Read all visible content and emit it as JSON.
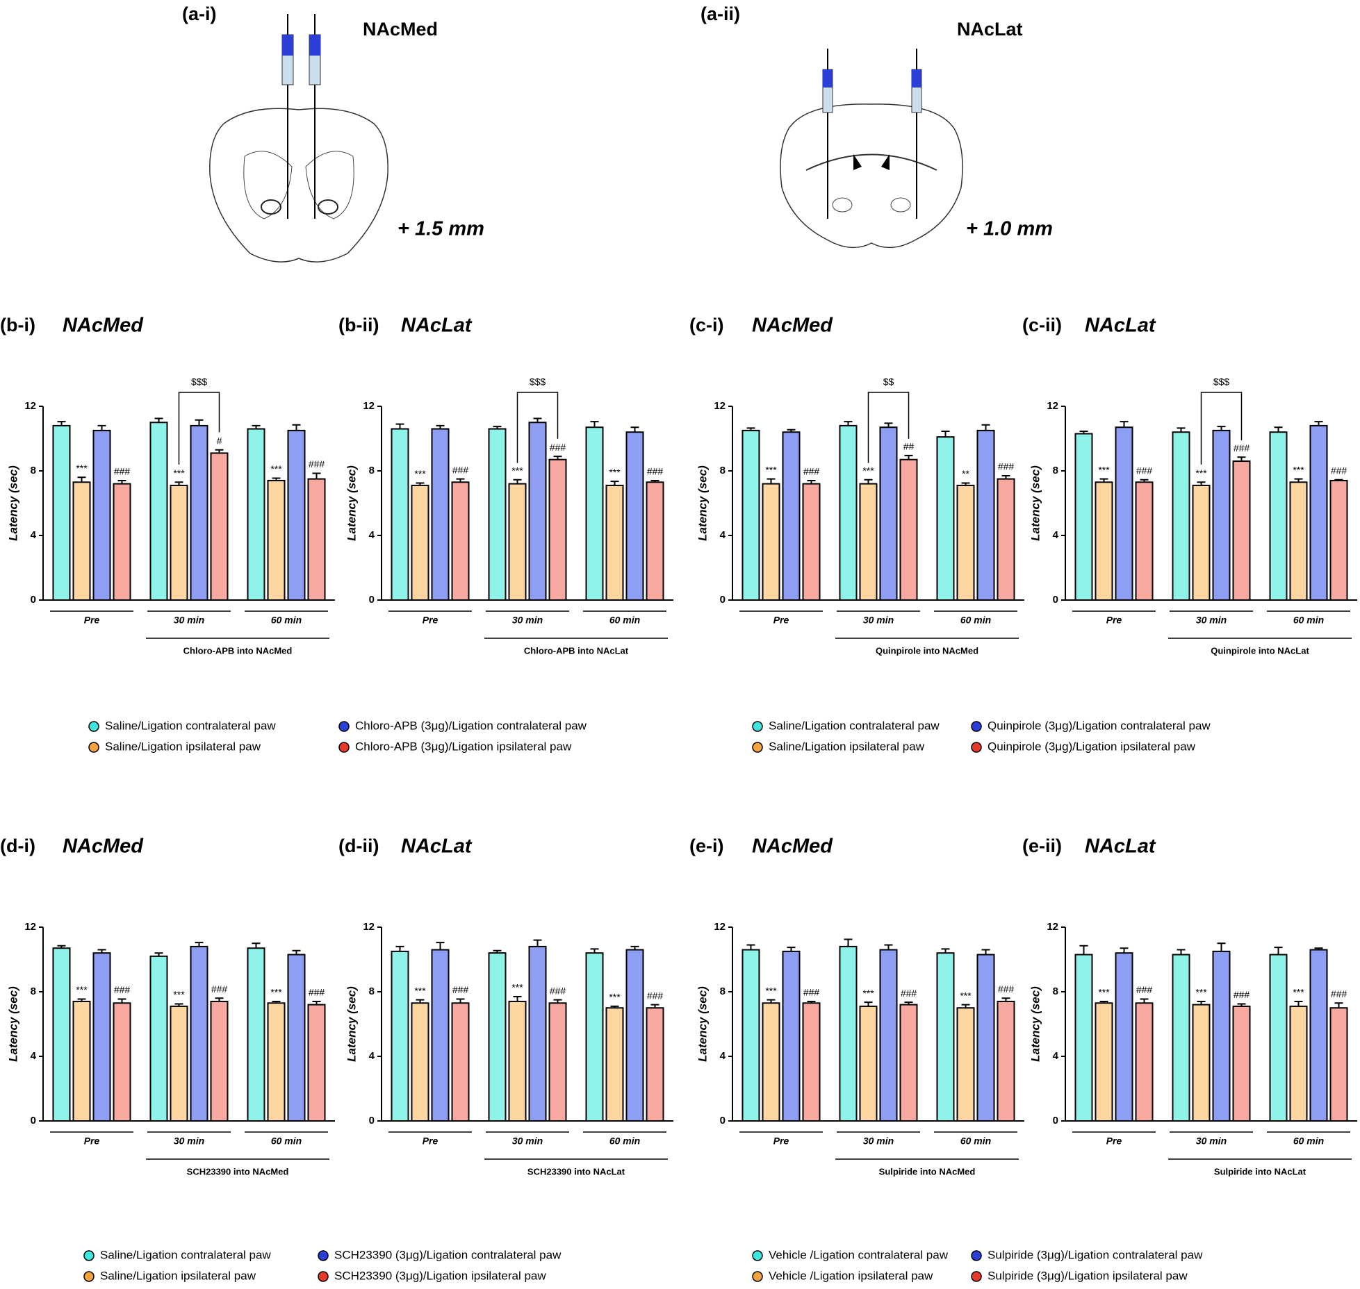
{
  "diagrams": [
    {
      "panel": "(a-i)",
      "title": "NAcMed",
      "coordinate": "+ 1.5 mm"
    },
    {
      "panel": "(a-ii)",
      "title": "NAcLat",
      "coordinate": "+ 1.0 mm"
    }
  ],
  "chart_data": [
    {
      "type": "bar",
      "panel": "(b-i)",
      "title": "NAcMed",
      "y_label": "Latency (sec)",
      "categories": [
        "Pre",
        "30 min",
        "60 min"
      ],
      "caption": "Chloro-APB into NAcMed",
      "ylim": [
        0,
        12
      ],
      "yticks": [
        0,
        4,
        8,
        12
      ],
      "bracket_label": "$$$",
      "series": [
        {
          "color": "#8ff3ea",
          "values": [
            10.8,
            11.0,
            10.6
          ],
          "errors": [
            0.25,
            0.25,
            0.2
          ]
        },
        {
          "color": "#fdd6a2",
          "values": [
            7.3,
            7.1,
            7.4
          ],
          "errors": [
            0.3,
            0.2,
            0.15
          ],
          "annotations": [
            "***",
            "***",
            "***"
          ]
        },
        {
          "color": "#8e9ff3",
          "values": [
            10.5,
            10.8,
            10.5
          ],
          "errors": [
            0.3,
            0.35,
            0.35
          ]
        },
        {
          "color": "#f7a89f",
          "values": [
            7.2,
            9.1,
            7.5
          ],
          "errors": [
            0.2,
            0.2,
            0.35
          ],
          "annotations": [
            "###",
            "#",
            "###"
          ]
        }
      ]
    },
    {
      "type": "bar",
      "panel": "(b-ii)",
      "title": "NAcLat",
      "y_label": "Latency (sec)",
      "categories": [
        "Pre",
        "30 min",
        "60 min"
      ],
      "caption": "Chloro-APB into NAcLat",
      "ylim": [
        0,
        12
      ],
      "yticks": [
        0,
        4,
        8,
        12
      ],
      "bracket_label": "$$$",
      "series": [
        {
          "color": "#8ff3ea",
          "values": [
            10.6,
            10.6,
            10.7
          ],
          "errors": [
            0.3,
            0.15,
            0.35
          ]
        },
        {
          "color": "#fdd6a2",
          "values": [
            7.1,
            7.2,
            7.1
          ],
          "errors": [
            0.15,
            0.25,
            0.25
          ],
          "annotations": [
            "***",
            "***",
            "***"
          ]
        },
        {
          "color": "#8e9ff3",
          "values": [
            10.6,
            11.0,
            10.4
          ],
          "errors": [
            0.2,
            0.25,
            0.3
          ]
        },
        {
          "color": "#f7a89f",
          "values": [
            7.3,
            8.7,
            7.3
          ],
          "errors": [
            0.2,
            0.2,
            0.1
          ],
          "annotations": [
            "###",
            "###",
            "###"
          ]
        }
      ]
    },
    {
      "type": "bar",
      "panel": "(c-i)",
      "title": "NAcMed",
      "y_label": "Latency (sec)",
      "categories": [
        "Pre",
        "30 min",
        "60 min"
      ],
      "caption": "Quinpirole into NAcMed",
      "ylim": [
        0,
        12
      ],
      "yticks": [
        0,
        4,
        8,
        12
      ],
      "bracket_label": "$$",
      "series": [
        {
          "color": "#8ff3ea",
          "values": [
            10.5,
            10.8,
            10.1
          ],
          "errors": [
            0.15,
            0.25,
            0.35
          ]
        },
        {
          "color": "#fdd6a2",
          "values": [
            7.2,
            7.2,
            7.1
          ],
          "errors": [
            0.3,
            0.25,
            0.15
          ],
          "annotations": [
            "***",
            "***",
            "**"
          ]
        },
        {
          "color": "#8e9ff3",
          "values": [
            10.4,
            10.7,
            10.5
          ],
          "errors": [
            0.15,
            0.25,
            0.35
          ]
        },
        {
          "color": "#f7a89f",
          "values": [
            7.2,
            8.7,
            7.5
          ],
          "errors": [
            0.2,
            0.25,
            0.2
          ],
          "annotations": [
            "###",
            "##",
            "###"
          ]
        }
      ]
    },
    {
      "type": "bar",
      "panel": "(c-ii)",
      "title": "NAcLat",
      "y_label": "Latency (sec)",
      "categories": [
        "Pre",
        "30 min",
        "60 min"
      ],
      "caption": "Quinpirole into NAcLat",
      "ylim": [
        0,
        12
      ],
      "yticks": [
        0,
        4,
        8,
        12
      ],
      "bracket_label": "$$$",
      "series": [
        {
          "color": "#8ff3ea",
          "values": [
            10.3,
            10.4,
            10.4
          ],
          "errors": [
            0.15,
            0.25,
            0.3
          ]
        },
        {
          "color": "#fdd6a2",
          "values": [
            7.3,
            7.1,
            7.3
          ],
          "errors": [
            0.2,
            0.2,
            0.2
          ],
          "annotations": [
            "***",
            "***",
            "***"
          ]
        },
        {
          "color": "#8e9ff3",
          "values": [
            10.7,
            10.5,
            10.8
          ],
          "errors": [
            0.35,
            0.25,
            0.25
          ]
        },
        {
          "color": "#f7a89f",
          "values": [
            7.3,
            8.6,
            7.4
          ],
          "errors": [
            0.15,
            0.25,
            0.05
          ],
          "annotations": [
            "###",
            "###",
            "###"
          ]
        }
      ]
    },
    {
      "type": "bar",
      "panel": "(d-i)",
      "title": "NAcMed",
      "y_label": "Latency (sec)",
      "categories": [
        "Pre",
        "30 min",
        "60 min"
      ],
      "caption": "SCH23390 into NAcMed",
      "ylim": [
        0,
        12
      ],
      "yticks": [
        0,
        4,
        8,
        12
      ],
      "series": [
        {
          "color": "#8ff3ea",
          "values": [
            10.7,
            10.2,
            10.7
          ],
          "errors": [
            0.15,
            0.2,
            0.3
          ]
        },
        {
          "color": "#fdd6a2",
          "values": [
            7.4,
            7.1,
            7.3
          ],
          "errors": [
            0.15,
            0.15,
            0.1
          ],
          "annotations": [
            "***",
            "***",
            "***"
          ]
        },
        {
          "color": "#8e9ff3",
          "values": [
            10.4,
            10.8,
            10.3
          ],
          "errors": [
            0.2,
            0.25,
            0.25
          ]
        },
        {
          "color": "#f7a89f",
          "values": [
            7.3,
            7.4,
            7.2
          ],
          "errors": [
            0.25,
            0.2,
            0.2
          ],
          "annotations": [
            "###",
            "###",
            "###"
          ]
        }
      ]
    },
    {
      "type": "bar",
      "panel": "(d-ii)",
      "title": "NAcLat",
      "y_label": "Latency (sec)",
      "categories": [
        "Pre",
        "30 min",
        "60 min"
      ],
      "caption": "SCH23390 into NAcLat",
      "ylim": [
        0,
        12
      ],
      "yticks": [
        0,
        4,
        8,
        12
      ],
      "series": [
        {
          "color": "#8ff3ea",
          "values": [
            10.5,
            10.4,
            10.4
          ],
          "errors": [
            0.3,
            0.15,
            0.25
          ]
        },
        {
          "color": "#fdd6a2",
          "values": [
            7.3,
            7.4,
            7.0
          ],
          "errors": [
            0.2,
            0.3,
            0.1
          ],
          "annotations": [
            "***",
            "***",
            "***"
          ]
        },
        {
          "color": "#8e9ff3",
          "values": [
            10.6,
            10.8,
            10.6
          ],
          "errors": [
            0.45,
            0.4,
            0.2
          ]
        },
        {
          "color": "#f7a89f",
          "values": [
            7.3,
            7.3,
            7.0
          ],
          "errors": [
            0.25,
            0.2,
            0.2
          ],
          "annotations": [
            "###",
            "###",
            "###"
          ]
        }
      ]
    },
    {
      "type": "bar",
      "panel": "(e-i)",
      "title": "NAcMed",
      "y_label": "Latency (sec)",
      "categories": [
        "Pre",
        "30 min",
        "60 min"
      ],
      "caption": "Sulpiride into NAcMed",
      "ylim": [
        0,
        12
      ],
      "yticks": [
        0,
        4,
        8,
        12
      ],
      "series": [
        {
          "color": "#8ff3ea",
          "values": [
            10.6,
            10.8,
            10.4
          ],
          "errors": [
            0.3,
            0.45,
            0.25
          ]
        },
        {
          "color": "#fdd6a2",
          "values": [
            7.3,
            7.1,
            7.0
          ],
          "errors": [
            0.2,
            0.25,
            0.2
          ],
          "annotations": [
            "***",
            "***",
            "***"
          ]
        },
        {
          "color": "#8e9ff3",
          "values": [
            10.5,
            10.6,
            10.3
          ],
          "errors": [
            0.25,
            0.3,
            0.3
          ]
        },
        {
          "color": "#f7a89f",
          "values": [
            7.3,
            7.2,
            7.4
          ],
          "errors": [
            0.1,
            0.15,
            0.2
          ],
          "annotations": [
            "###",
            "###",
            "###"
          ]
        }
      ]
    },
    {
      "type": "bar",
      "panel": "(e-ii)",
      "title": "NAcLat",
      "y_label": "Latency (sec)",
      "categories": [
        "Pre",
        "30 min",
        "60 min"
      ],
      "caption": "Sulpiride into NAcLat",
      "ylim": [
        0,
        12
      ],
      "yticks": [
        0,
        4,
        8,
        12
      ],
      "series": [
        {
          "color": "#8ff3ea",
          "values": [
            10.3,
            10.3,
            10.3
          ],
          "errors": [
            0.55,
            0.3,
            0.45
          ]
        },
        {
          "color": "#fdd6a2",
          "values": [
            7.3,
            7.2,
            7.1
          ],
          "errors": [
            0.1,
            0.2,
            0.3
          ],
          "annotations": [
            "***",
            "***",
            "***"
          ]
        },
        {
          "color": "#8e9ff3",
          "values": [
            10.4,
            10.5,
            10.6
          ],
          "errors": [
            0.3,
            0.5,
            0.1
          ]
        },
        {
          "color": "#f7a89f",
          "values": [
            7.3,
            7.1,
            7.0
          ],
          "errors": [
            0.25,
            0.15,
            0.3
          ],
          "annotations": [
            "###",
            "###",
            "###"
          ]
        }
      ]
    }
  ],
  "legends": [
    {
      "entries": [
        {
          "label": "Saline/Ligation contralateral paw",
          "color": "#3fe6de"
        },
        {
          "label": "Saline/Ligation ipsilateral paw",
          "color": "#f5a33d"
        },
        {
          "label": "Chloro-APB (3μg)/Ligation contralateral paw",
          "color": "#2a3fd8"
        },
        {
          "label": "Chloro-APB (3μg)/Ligation ipsilateral paw",
          "color": "#e7382a"
        }
      ]
    },
    {
      "entries": [
        {
          "label": "Saline/Ligation contralateral paw",
          "color": "#3fe6de"
        },
        {
          "label": "Saline/Ligation ipsilateral paw",
          "color": "#f5a33d"
        },
        {
          "label": "Quinpirole (3μg)/Ligation contralateral paw",
          "color": "#2a3fd8"
        },
        {
          "label": "Quinpirole (3μg)/Ligation ipsilateral paw",
          "color": "#e7382a"
        }
      ]
    },
    {
      "entries": [
        {
          "label": "Saline/Ligation contralateral paw",
          "color": "#3fe6de"
        },
        {
          "label": "Saline/Ligation ipsilateral paw",
          "color": "#f5a33d"
        },
        {
          "label": "SCH23390 (3μg)/Ligation contralateral paw",
          "color": "#2a3fd8"
        },
        {
          "label": "SCH23390 (3μg)/Ligation ipsilateral paw",
          "color": "#e7382a"
        }
      ]
    },
    {
      "entries": [
        {
          "label": "Vehicle /Ligation contralateral paw",
          "color": "#3fe6de"
        },
        {
          "label": "Vehicle /Ligation ipsilateral paw",
          "color": "#f5a33d"
        },
        {
          "label": "Sulpiride (3μg)/Ligation contralateral paw",
          "color": "#2a3fd8"
        },
        {
          "label": "Sulpiride (3μg)/Ligation ipsilateral paw",
          "color": "#e7382a"
        }
      ]
    }
  ]
}
